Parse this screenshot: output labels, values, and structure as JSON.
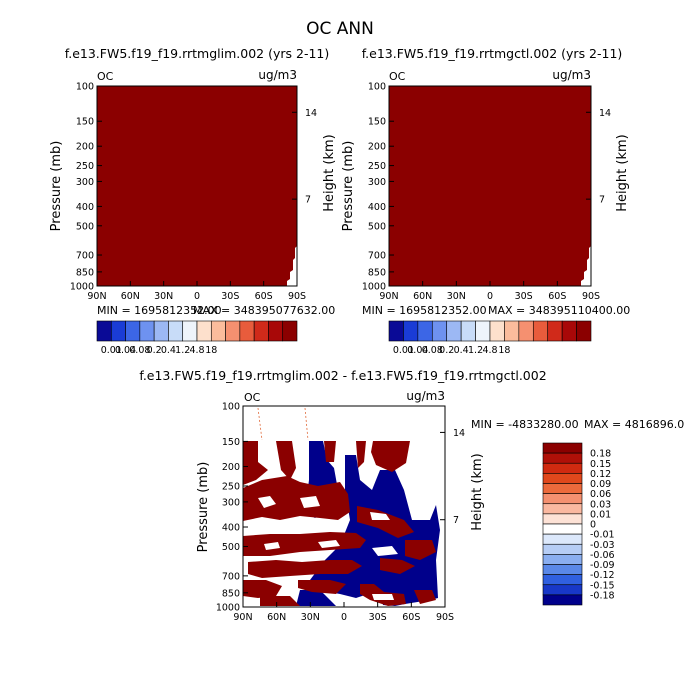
{
  "main_title": "OC ANN",
  "colors": {
    "full": "#8b0000",
    "white": "#ffffff",
    "navy": "#00008b"
  },
  "chart_data": [
    {
      "type": "heatmap",
      "id": "top-left",
      "title": "f.e13.FW5.f19_f19.rrtmglim.002 (yrs 2-11)",
      "corner_left": "OC",
      "corner_right": "ug/m3",
      "ylabel": "Pressure (mb)",
      "ylabel_right": "Height (km)",
      "pressure_ticks": [
        "100",
        "150",
        "200",
        "250",
        "300",
        "400",
        "500",
        "700",
        "850",
        "1000"
      ],
      "pressure_values": [
        100,
        150,
        200,
        250,
        300,
        400,
        500,
        700,
        850,
        1000
      ],
      "height_ticks": [
        {
          "label": "14",
          "km": 14
        },
        {
          "label": "7",
          "km": 7
        }
      ],
      "lat_ticks": [
        "90N",
        "60N",
        "30N",
        "0",
        "30S",
        "60S",
        "90S"
      ],
      "lat_values": [
        90,
        60,
        30,
        0,
        -30,
        -60,
        -90
      ],
      "min_label": "MIN = 1695812352.00",
      "max_label": "MAX = 348395077632.00",
      "colorbar_labels": [
        "0.01",
        "0.04",
        "0.08",
        "0.2",
        "0.4",
        "1.2",
        "4.8",
        "18"
      ],
      "colorbar_colors": [
        "#0a0a96",
        "#1a3cd6",
        "#3c66e6",
        "#6e92f0",
        "#9cb8f4",
        "#c8dcf8",
        "#eef4fb",
        "#fde0cc",
        "#fbbc9c",
        "#f59070",
        "#e85c3c",
        "#d02a1a",
        "#a80808",
        "#8b0000"
      ]
    },
    {
      "type": "heatmap",
      "id": "top-right",
      "title": "f.e13.FW5.f19_f19.rrtmgctl.002 (yrs 2-11)",
      "corner_left": "OC",
      "corner_right": "ug/m3",
      "ylabel": "Pressure (mb)",
      "ylabel_right": "Height (km)",
      "pressure_ticks": [
        "100",
        "150",
        "200",
        "250",
        "300",
        "400",
        "500",
        "700",
        "850",
        "1000"
      ],
      "pressure_values": [
        100,
        150,
        200,
        250,
        300,
        400,
        500,
        700,
        850,
        1000
      ],
      "height_ticks": [
        {
          "label": "14",
          "km": 14
        },
        {
          "label": "7",
          "km": 7
        }
      ],
      "lat_ticks": [
        "90N",
        "60N",
        "30N",
        "0",
        "30S",
        "60S",
        "90S"
      ],
      "lat_values": [
        90,
        60,
        30,
        0,
        -30,
        -60,
        -90
      ],
      "min_label": "MIN = 1695812352.00",
      "max_label": "MAX = 348395110400.00",
      "colorbar_labels": [
        "0.01",
        "0.04",
        "0.08",
        "0.2",
        "0.4",
        "1.2",
        "4.8",
        "18"
      ],
      "colorbar_colors": [
        "#0a0a96",
        "#1a3cd6",
        "#3c66e6",
        "#6e92f0",
        "#9cb8f4",
        "#c8dcf8",
        "#eef4fb",
        "#fde0cc",
        "#fbbc9c",
        "#f59070",
        "#e85c3c",
        "#d02a1a",
        "#a80808",
        "#8b0000"
      ]
    },
    {
      "type": "heatmap",
      "id": "difference",
      "title": "f.e13.FW5.f19_f19.rrtmglim.002 - f.e13.FW5.f19_f19.rrtmgctl.002",
      "corner_left": "OC",
      "corner_right": "ug/m3",
      "ylabel": "Pressure (mb)",
      "ylabel_right": "Height (km)",
      "pressure_ticks": [
        "100",
        "150",
        "200",
        "250",
        "300",
        "400",
        "500",
        "700",
        "850",
        "1000"
      ],
      "pressure_values": [
        100,
        150,
        200,
        250,
        300,
        400,
        500,
        700,
        850,
        1000
      ],
      "height_ticks": [
        {
          "label": "14",
          "km": 14
        },
        {
          "label": "7",
          "km": 7
        }
      ],
      "lat_ticks": [
        "90N",
        "60N",
        "30N",
        "0",
        "30S",
        "60S",
        "90S"
      ],
      "lat_values": [
        90,
        60,
        30,
        0,
        -30,
        -60,
        -90
      ],
      "min_label": "MIN = -4833280.00",
      "max_label": "MAX = 4816896.00",
      "colorbar_labels": [
        "0.18",
        "0.15",
        "0.12",
        "0.09",
        "0.06",
        "0.03",
        "0.01",
        "0",
        "-0.01",
        "-0.03",
        "-0.06",
        "-0.09",
        "-0.12",
        "-0.15",
        "-0.18"
      ],
      "colorbar_colors": [
        "#8b0000",
        "#b01008",
        "#d02a10",
        "#e0481c",
        "#ec6a3c",
        "#f49070",
        "#fab8a0",
        "#fde2d6",
        "#ffffff",
        "#dce8fb",
        "#b6cdf5",
        "#8aaef0",
        "#5a88e8",
        "#3060e0",
        "#1838c8",
        "#00008b"
      ]
    }
  ]
}
